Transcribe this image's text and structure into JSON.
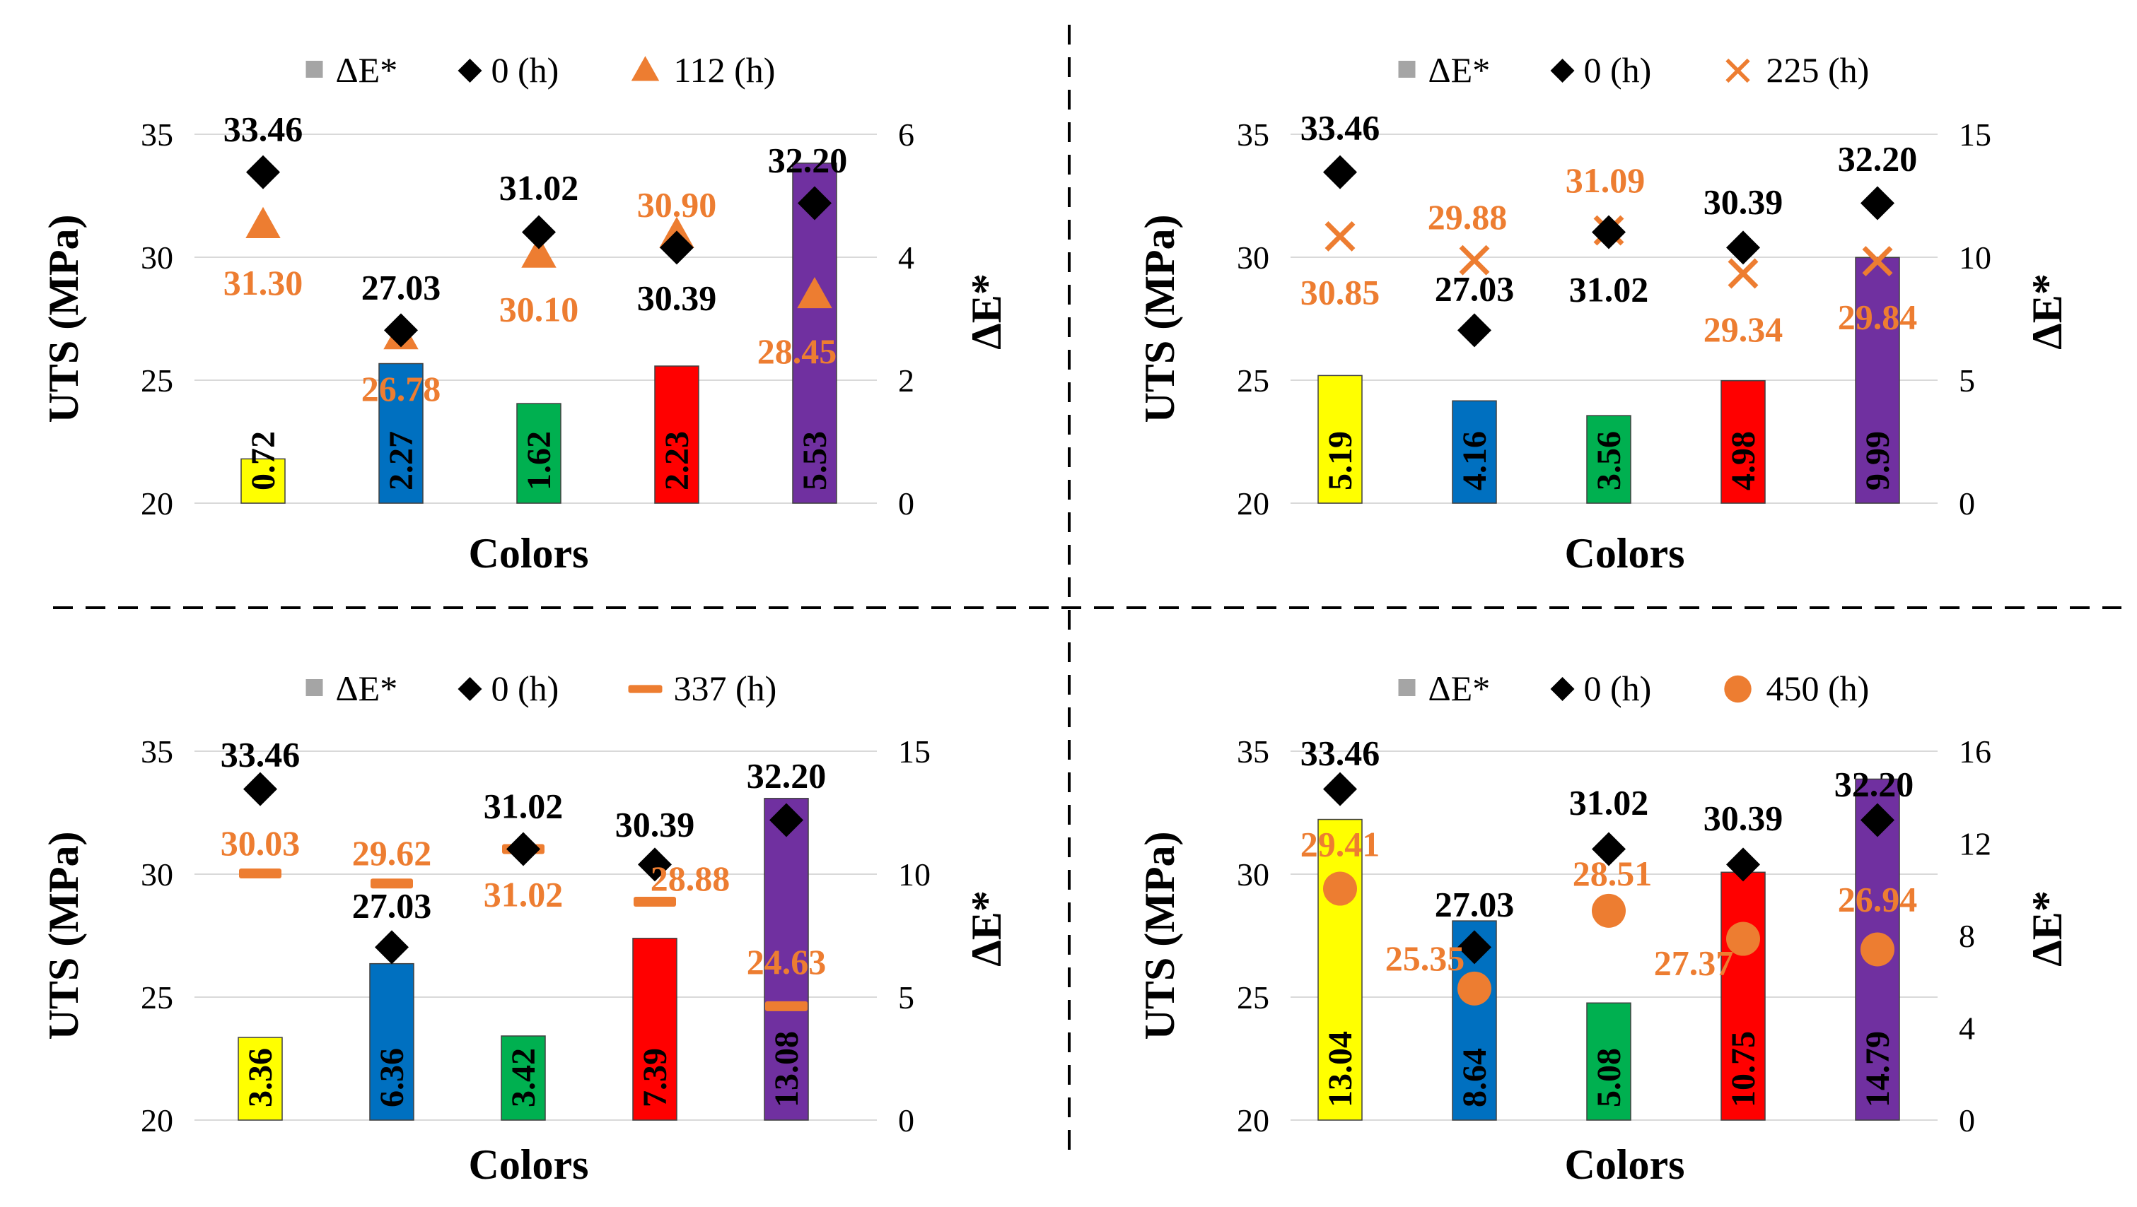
{
  "colors": {
    "bar_palette": [
      "#FFFF00",
      "#0070C0",
      "#00B050",
      "#FF0000",
      "#7030A0"
    ],
    "diamond": "#000000",
    "orange": "#ED7D31",
    "legend_gray": "#A5A5A5",
    "grid": "#D9D9D9",
    "divider": "#000000"
  },
  "chart_data": [
    {
      "type": "bar",
      "panel": "top-left",
      "title": "",
      "xlabel": "Colors",
      "ylabel": "UTS (MPa)",
      "y2label": "ΔE*",
      "ylim": [
        20,
        35
      ],
      "yticks": [
        "35",
        "30",
        "25",
        "20"
      ],
      "y2lim": [
        0,
        6
      ],
      "y2ticks": [
        "6",
        "4",
        "2",
        "0"
      ],
      "legend": [
        "ΔE*",
        "0 (h)",
        "112 (h)"
      ],
      "categories": [
        "Yellow",
        "Blue",
        "Green",
        "Red",
        "Purple"
      ],
      "series": [
        {
          "name": "ΔE*",
          "kind": "bar",
          "axis": "secondary",
          "values": [
            0.72,
            2.27,
            1.62,
            2.23,
            5.53
          ],
          "labels": [
            "0.72",
            "2.27",
            "1.62",
            "2.23",
            "5.53"
          ]
        },
        {
          "name": "0 (h)",
          "kind": "diamond",
          "axis": "primary",
          "values": [
            33.46,
            27.03,
            31.02,
            30.39,
            32.2
          ],
          "labels": [
            "33.46",
            "27.03",
            "31.02",
            "30.39",
            "32.20"
          ]
        },
        {
          "name": "112 (h)",
          "kind": "triangle",
          "axis": "primary",
          "values": [
            31.3,
            26.78,
            30.1,
            30.9,
            28.45
          ],
          "labels": [
            "31.30",
            "26.78",
            "30.10",
            "30.90",
            "28.45"
          ]
        }
      ]
    },
    {
      "type": "bar",
      "panel": "top-right",
      "title": "",
      "xlabel": "Colors",
      "ylabel": "UTS (MPa)",
      "y2label": "ΔE*",
      "ylim": [
        20,
        35
      ],
      "yticks": [
        "35",
        "30",
        "25",
        "20"
      ],
      "y2lim": [
        0,
        15
      ],
      "y2ticks": [
        "15",
        "10",
        "5",
        "0"
      ],
      "legend": [
        "ΔE*",
        "0 (h)",
        "225 (h)"
      ],
      "categories": [
        "Yellow",
        "Blue",
        "Green",
        "Red",
        "Purple"
      ],
      "series": [
        {
          "name": "ΔE*",
          "kind": "bar",
          "axis": "secondary",
          "values": [
            5.19,
            4.16,
            3.56,
            4.98,
            9.99
          ],
          "labels": [
            "5.19",
            "4.16",
            "3.56",
            "4.98",
            "9.99"
          ]
        },
        {
          "name": "0 (h)",
          "kind": "diamond",
          "axis": "primary",
          "values": [
            33.46,
            27.03,
            31.02,
            30.39,
            32.2
          ],
          "labels": [
            "33.46",
            "27.03",
            "31.02",
            "30.39",
            "32.20"
          ]
        },
        {
          "name": "225 (h)",
          "kind": "cross",
          "axis": "primary",
          "values": [
            30.85,
            29.88,
            31.09,
            29.34,
            29.84
          ],
          "labels": [
            "30.85",
            "29.88",
            "31.09",
            "29.34",
            "29.84"
          ]
        }
      ]
    },
    {
      "type": "bar",
      "panel": "bottom-left",
      "title": "",
      "xlabel": "Colors",
      "ylabel": "UTS (MPa)",
      "y2label": "ΔE*",
      "ylim": [
        20,
        35
      ],
      "yticks": [
        "35",
        "30",
        "25",
        "20"
      ],
      "y2lim": [
        0,
        15
      ],
      "y2ticks": [
        "15",
        "10",
        "5",
        "0"
      ],
      "legend": [
        "ΔE*",
        "0 (h)",
        "337 (h)"
      ],
      "categories": [
        "Yellow",
        "Blue",
        "Green",
        "Red",
        "Purple"
      ],
      "series": [
        {
          "name": "ΔE*",
          "kind": "bar",
          "axis": "secondary",
          "values": [
            3.36,
            6.36,
            3.42,
            7.39,
            13.08
          ],
          "labels": [
            "3.36",
            "6.36",
            "3.42",
            "7.39",
            "13.08"
          ]
        },
        {
          "name": "0 (h)",
          "kind": "diamond",
          "axis": "primary",
          "values": [
            33.46,
            27.03,
            31.02,
            30.39,
            32.2
          ],
          "labels": [
            "33.46",
            "27.03",
            "31.02",
            "30.39",
            "32.20"
          ]
        },
        {
          "name": "337 (h)",
          "kind": "dash",
          "axis": "primary",
          "values": [
            30.03,
            29.62,
            31.02,
            28.88,
            24.63
          ],
          "labels": [
            "30.03",
            "29.62",
            "31.02",
            "28.88",
            "24.63"
          ]
        }
      ]
    },
    {
      "type": "bar",
      "panel": "bottom-right",
      "title": "",
      "xlabel": "Colors",
      "ylabel": "UTS (MPa)",
      "y2label": "ΔE*",
      "ylim": [
        20,
        35
      ],
      "yticks": [
        "35",
        "30",
        "25",
        "20"
      ],
      "y2lim": [
        0,
        16
      ],
      "y2ticks": [
        "16",
        "12",
        "8",
        "4",
        "0"
      ],
      "legend": [
        "ΔE*",
        "0 (h)",
        "450 (h)"
      ],
      "categories": [
        "Yellow",
        "Blue",
        "Green",
        "Red",
        "Purple"
      ],
      "series": [
        {
          "name": "ΔE*",
          "kind": "bar",
          "axis": "secondary",
          "values": [
            13.04,
            8.64,
            5.08,
            10.75,
            14.79
          ],
          "labels": [
            "13.04",
            "8.64",
            "5.08",
            "10.75",
            "14.79"
          ]
        },
        {
          "name": "0 (h)",
          "kind": "diamond",
          "axis": "primary",
          "values": [
            33.46,
            27.03,
            31.02,
            30.39,
            32.2
          ],
          "labels": [
            "33.46",
            "27.03",
            "31.02",
            "30.39",
            "32.20"
          ]
        },
        {
          "name": "450 (h)",
          "kind": "circle",
          "axis": "primary",
          "values": [
            29.41,
            25.35,
            28.51,
            27.37,
            26.94
          ],
          "labels": [
            "29.41",
            "25.35",
            "28.51",
            "27.37",
            "26.94"
          ]
        }
      ]
    }
  ]
}
